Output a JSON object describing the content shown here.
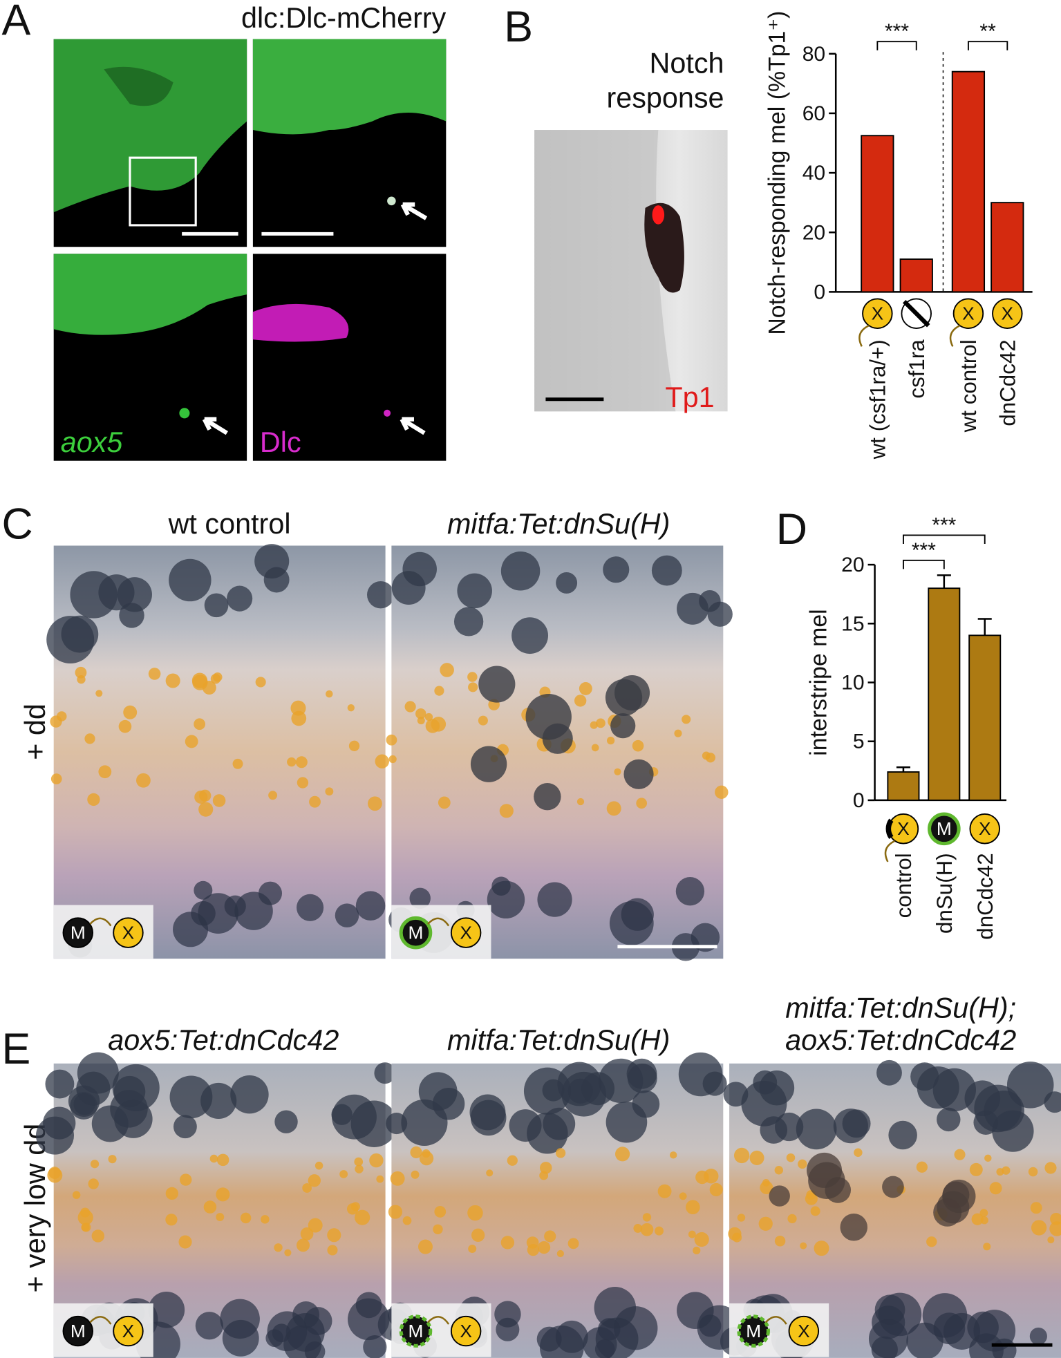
{
  "panels": {
    "a": {
      "label": "A",
      "title": "dlc:Dlc-mCherry",
      "left_channel": "aox5",
      "right_channel": "Dlc"
    },
    "b": {
      "label": "B",
      "image_title": [
        "Notch",
        "response"
      ],
      "marker": "Tp1"
    },
    "c": {
      "label": "C",
      "titles": [
        "wt control",
        "mitfa:Tet:dnSu(H)"
      ],
      "condition": "+ dd"
    },
    "d": {
      "label": "D"
    },
    "e": {
      "label": "E",
      "titles": [
        "aox5:Tet:dnCdc42",
        "mitfa:Tet:dnSu(H)",
        "mitfa:Tet:dnSu(H);",
        "aox5:Tet:dnCdc42"
      ],
      "condition": "+ very low dd"
    }
  },
  "icon_letters": {
    "x": "X",
    "m": "M"
  },
  "chart_data": [
    {
      "type": "bar",
      "ylabel": "Notch-responding mel (%Tp1⁺)",
      "categories": [
        "wt (csf1ra/+)",
        "csf1ra",
        "wt control",
        "dnCdc42"
      ],
      "values": [
        52.5,
        11,
        74,
        30
      ],
      "color": "#d42a0f",
      "ylim": [
        0,
        80
      ],
      "yticks": [
        0,
        20,
        40,
        60,
        80
      ],
      "significance": [
        "***",
        "**"
      ]
    },
    {
      "type": "bar",
      "ylabel": "interstripe mel",
      "categories": [
        "control",
        "dnSu(H)",
        "dnCdc42"
      ],
      "values": [
        2.4,
        18,
        14
      ],
      "errors": [
        0.4,
        1.1,
        1.4
      ],
      "color": "#ad7a12",
      "ylim": [
        0,
        20
      ],
      "yticks": [
        0,
        5,
        10,
        15,
        20
      ],
      "significance": [
        "***",
        "***"
      ]
    }
  ]
}
